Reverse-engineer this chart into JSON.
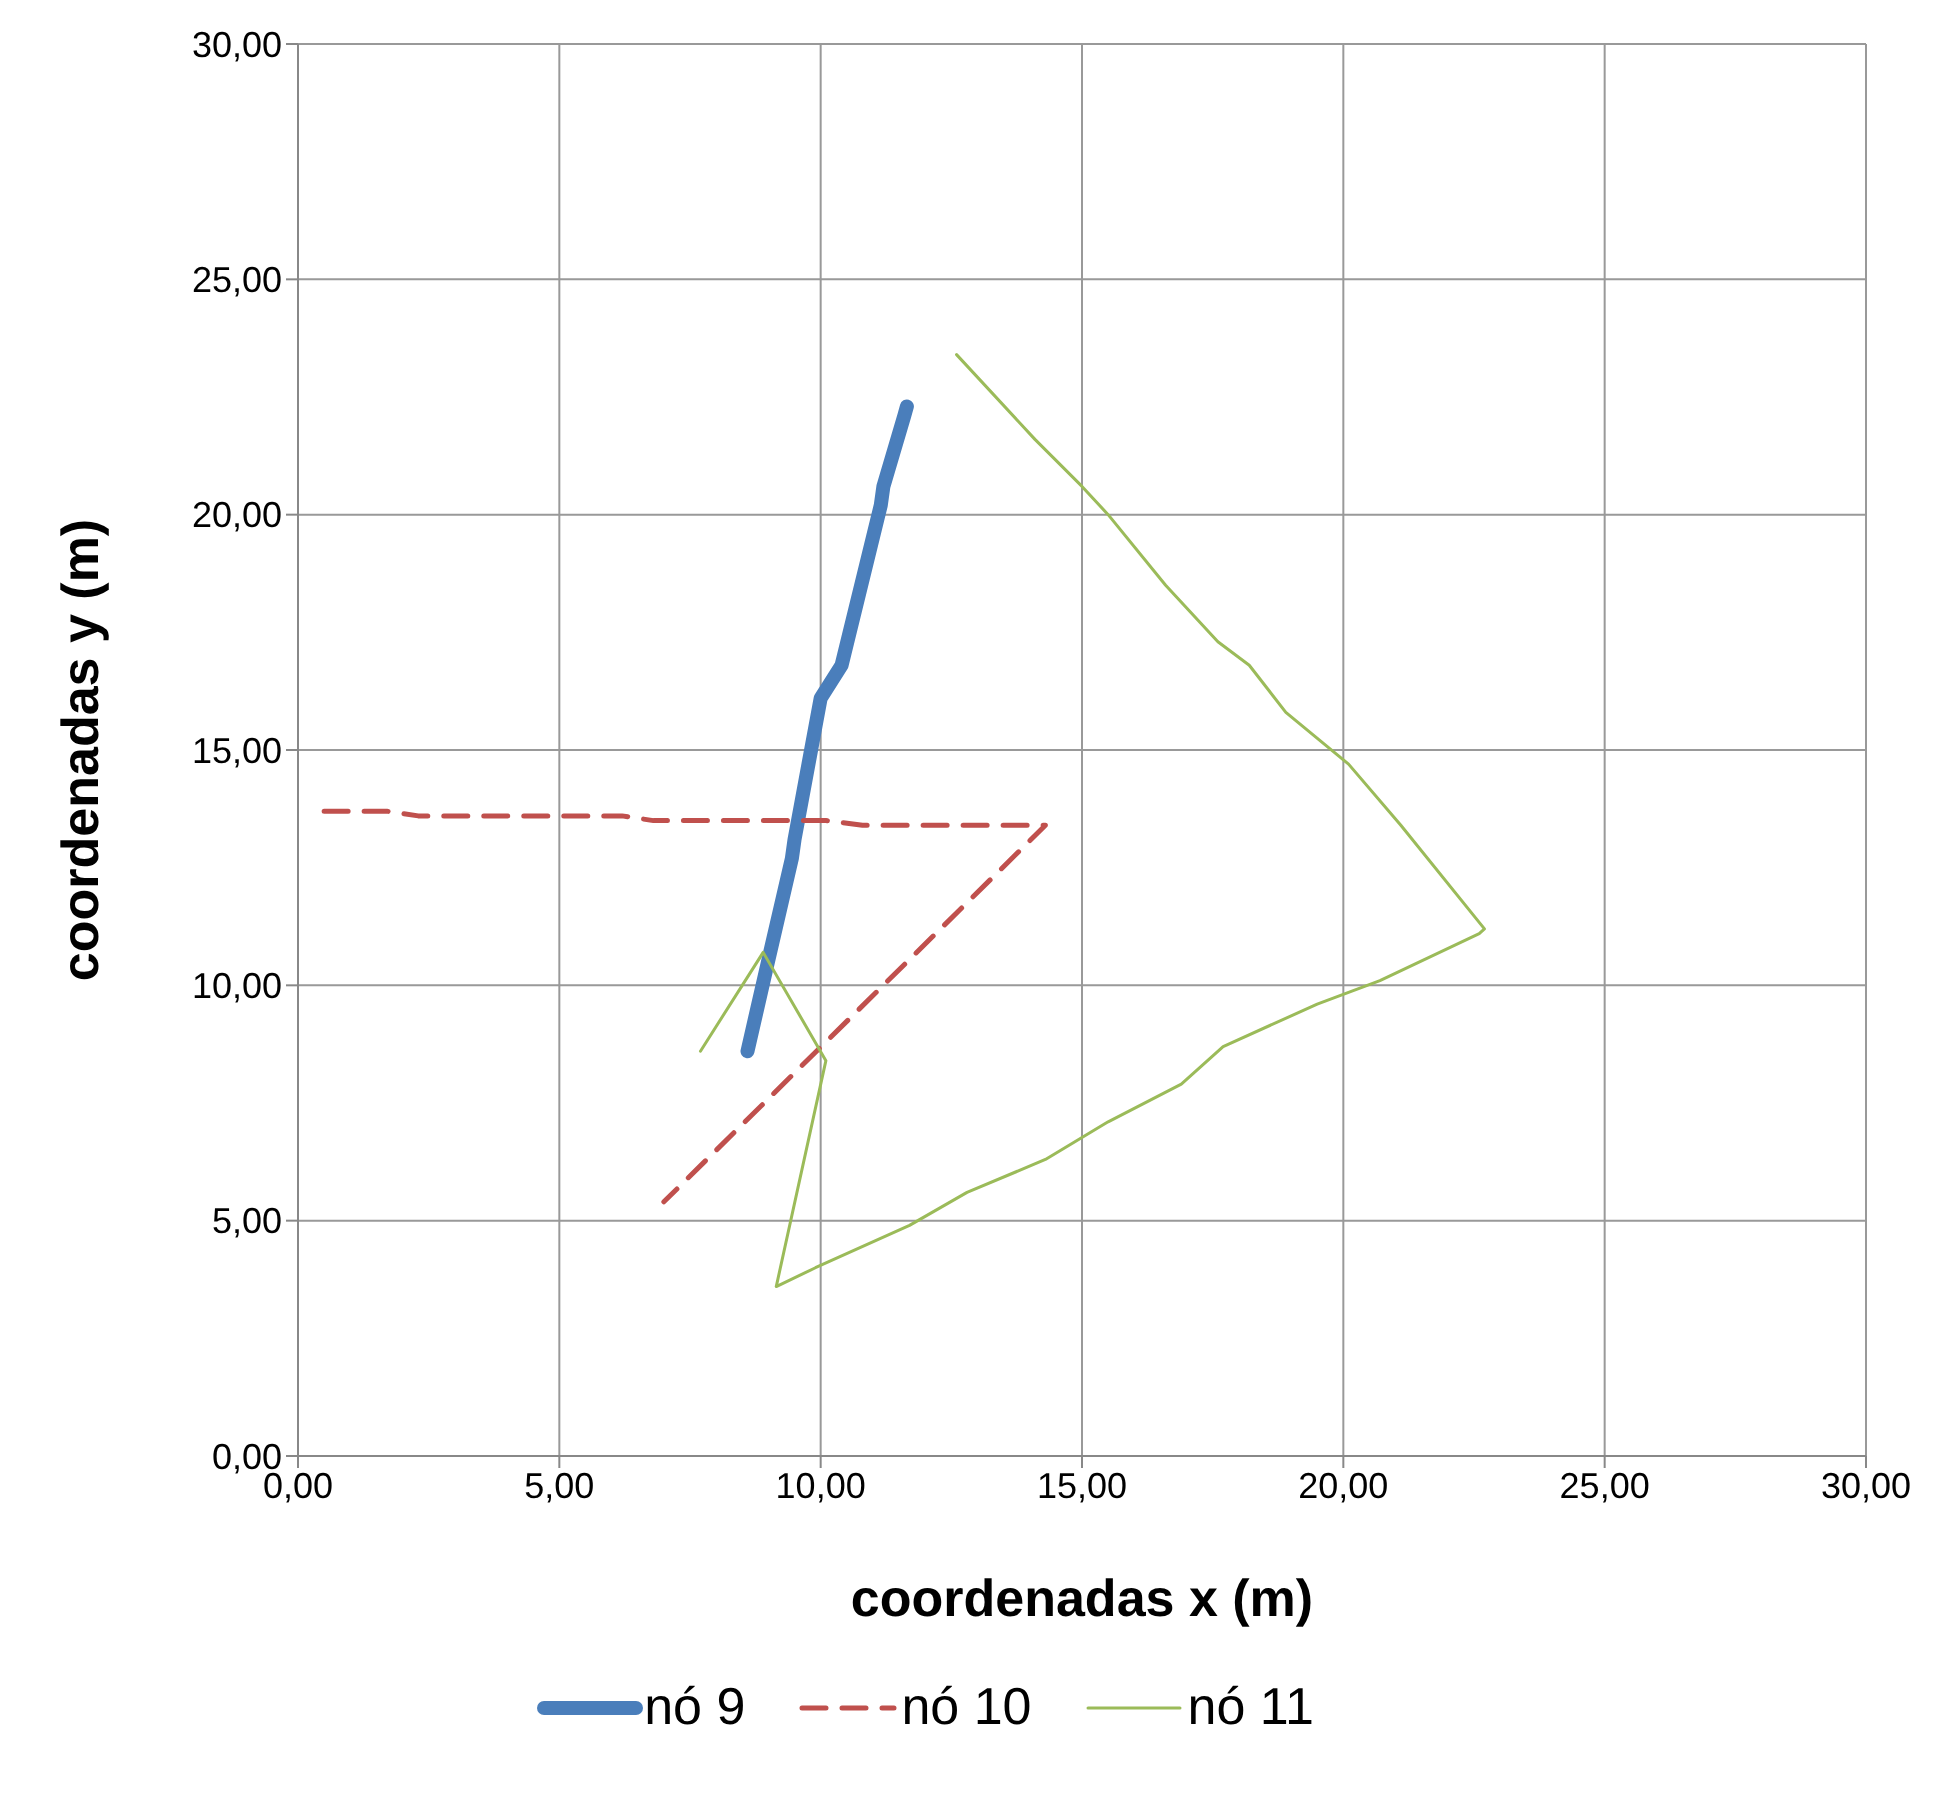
{
  "chart_data": {
    "type": "line",
    "xlabel": "coordenadas x (m)",
    "ylabel": "coordenadas y (m)",
    "xlim": [
      0,
      30
    ],
    "ylim": [
      0,
      30
    ],
    "xticks": [
      {
        "value": 0,
        "label": "0,00"
      },
      {
        "value": 5,
        "label": "5,00"
      },
      {
        "value": 10,
        "label": "10,00"
      },
      {
        "value": 15,
        "label": "15,00"
      },
      {
        "value": 20,
        "label": "20,00"
      },
      {
        "value": 25,
        "label": "25,00"
      },
      {
        "value": 30,
        "label": "30,00"
      }
    ],
    "yticks": [
      {
        "value": 0,
        "label": "0,00"
      },
      {
        "value": 5,
        "label": "5,00"
      },
      {
        "value": 10,
        "label": "10,00"
      },
      {
        "value": 15,
        "label": "15,00"
      },
      {
        "value": 20,
        "label": "20,00"
      },
      {
        "value": 25,
        "label": "25,00"
      },
      {
        "value": 30,
        "label": "30,00"
      }
    ],
    "grid": true,
    "legend": "bottom",
    "marker": "none",
    "series": [
      {
        "name": "nó 9",
        "color": "#4a7ebb",
        "line_style": "solid",
        "x": [
          8.6,
          8.95,
          9.45,
          9.5,
          10.0,
          10.4,
          11.15,
          11.2,
          11.6,
          11.65
        ],
        "values": [
          8.6,
          10.3,
          12.7,
          13.1,
          16.1,
          16.8,
          20.2,
          20.6,
          22.1,
          22.3
        ]
      },
      {
        "name": "nó 10",
        "color": "#c0504d",
        "line_style": "dashed",
        "x": [
          0.5,
          1.7,
          2.3,
          6.2,
          6.8,
          10.1,
          10.8,
          14.3,
          7.0
        ],
        "values": [
          13.7,
          13.7,
          13.6,
          13.6,
          13.5,
          13.5,
          13.4,
          13.4,
          5.4
        ]
      },
      {
        "name": "nó 11",
        "color": "#9bbb59",
        "line_style": "solid",
        "x": [
          7.7,
          8.9,
          10.1,
          9.15,
          9.9,
          11.7,
          12.8,
          14.3,
          15.5,
          16.9,
          17.7,
          19.5,
          20.7,
          22.6,
          22.7,
          21.1,
          20.1,
          18.9,
          18.2,
          17.6,
          16.6,
          15.5,
          15.0,
          14.1,
          12.6
        ],
        "values": [
          8.6,
          10.7,
          8.4,
          3.6,
          4.0,
          4.9,
          5.6,
          6.3,
          7.1,
          7.9,
          8.7,
          9.6,
          10.1,
          11.1,
          11.2,
          13.4,
          14.7,
          15.8,
          16.8,
          17.3,
          18.5,
          20.0,
          20.6,
          21.6,
          23.4
        ]
      }
    ]
  }
}
